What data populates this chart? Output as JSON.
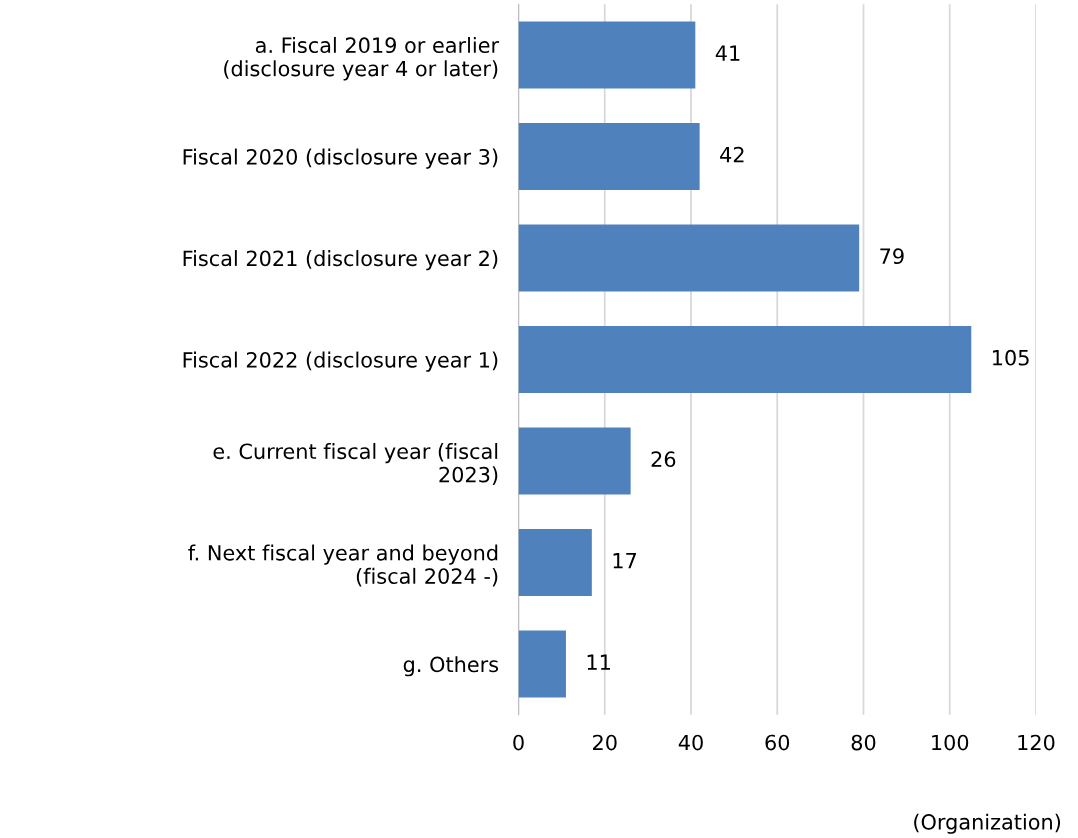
{
  "chart_data": {
    "type": "bar",
    "orientation": "horizontal",
    "categories": [
      "a. Fiscal 2019 or earlier\n(disclosure year 4 or later)",
      "Fiscal 2020 (disclosure year 3)",
      "Fiscal 2021 (disclosure year 2)",
      "Fiscal 2022 (disclosure year 1)",
      "e. Current fiscal year (fiscal\n2023)",
      "f. Next fiscal year and beyond\n(fiscal 2024 -)",
      "g. Others"
    ],
    "values": [
      41,
      42,
      79,
      105,
      26,
      17,
      11
    ],
    "color": "#4f81bd",
    "xlim": [
      0,
      120
    ],
    "xticks": [
      0,
      20,
      40,
      60,
      80,
      100,
      120
    ],
    "xlabel": "(Organization)",
    "grid": "x",
    "data_labels": true
  }
}
